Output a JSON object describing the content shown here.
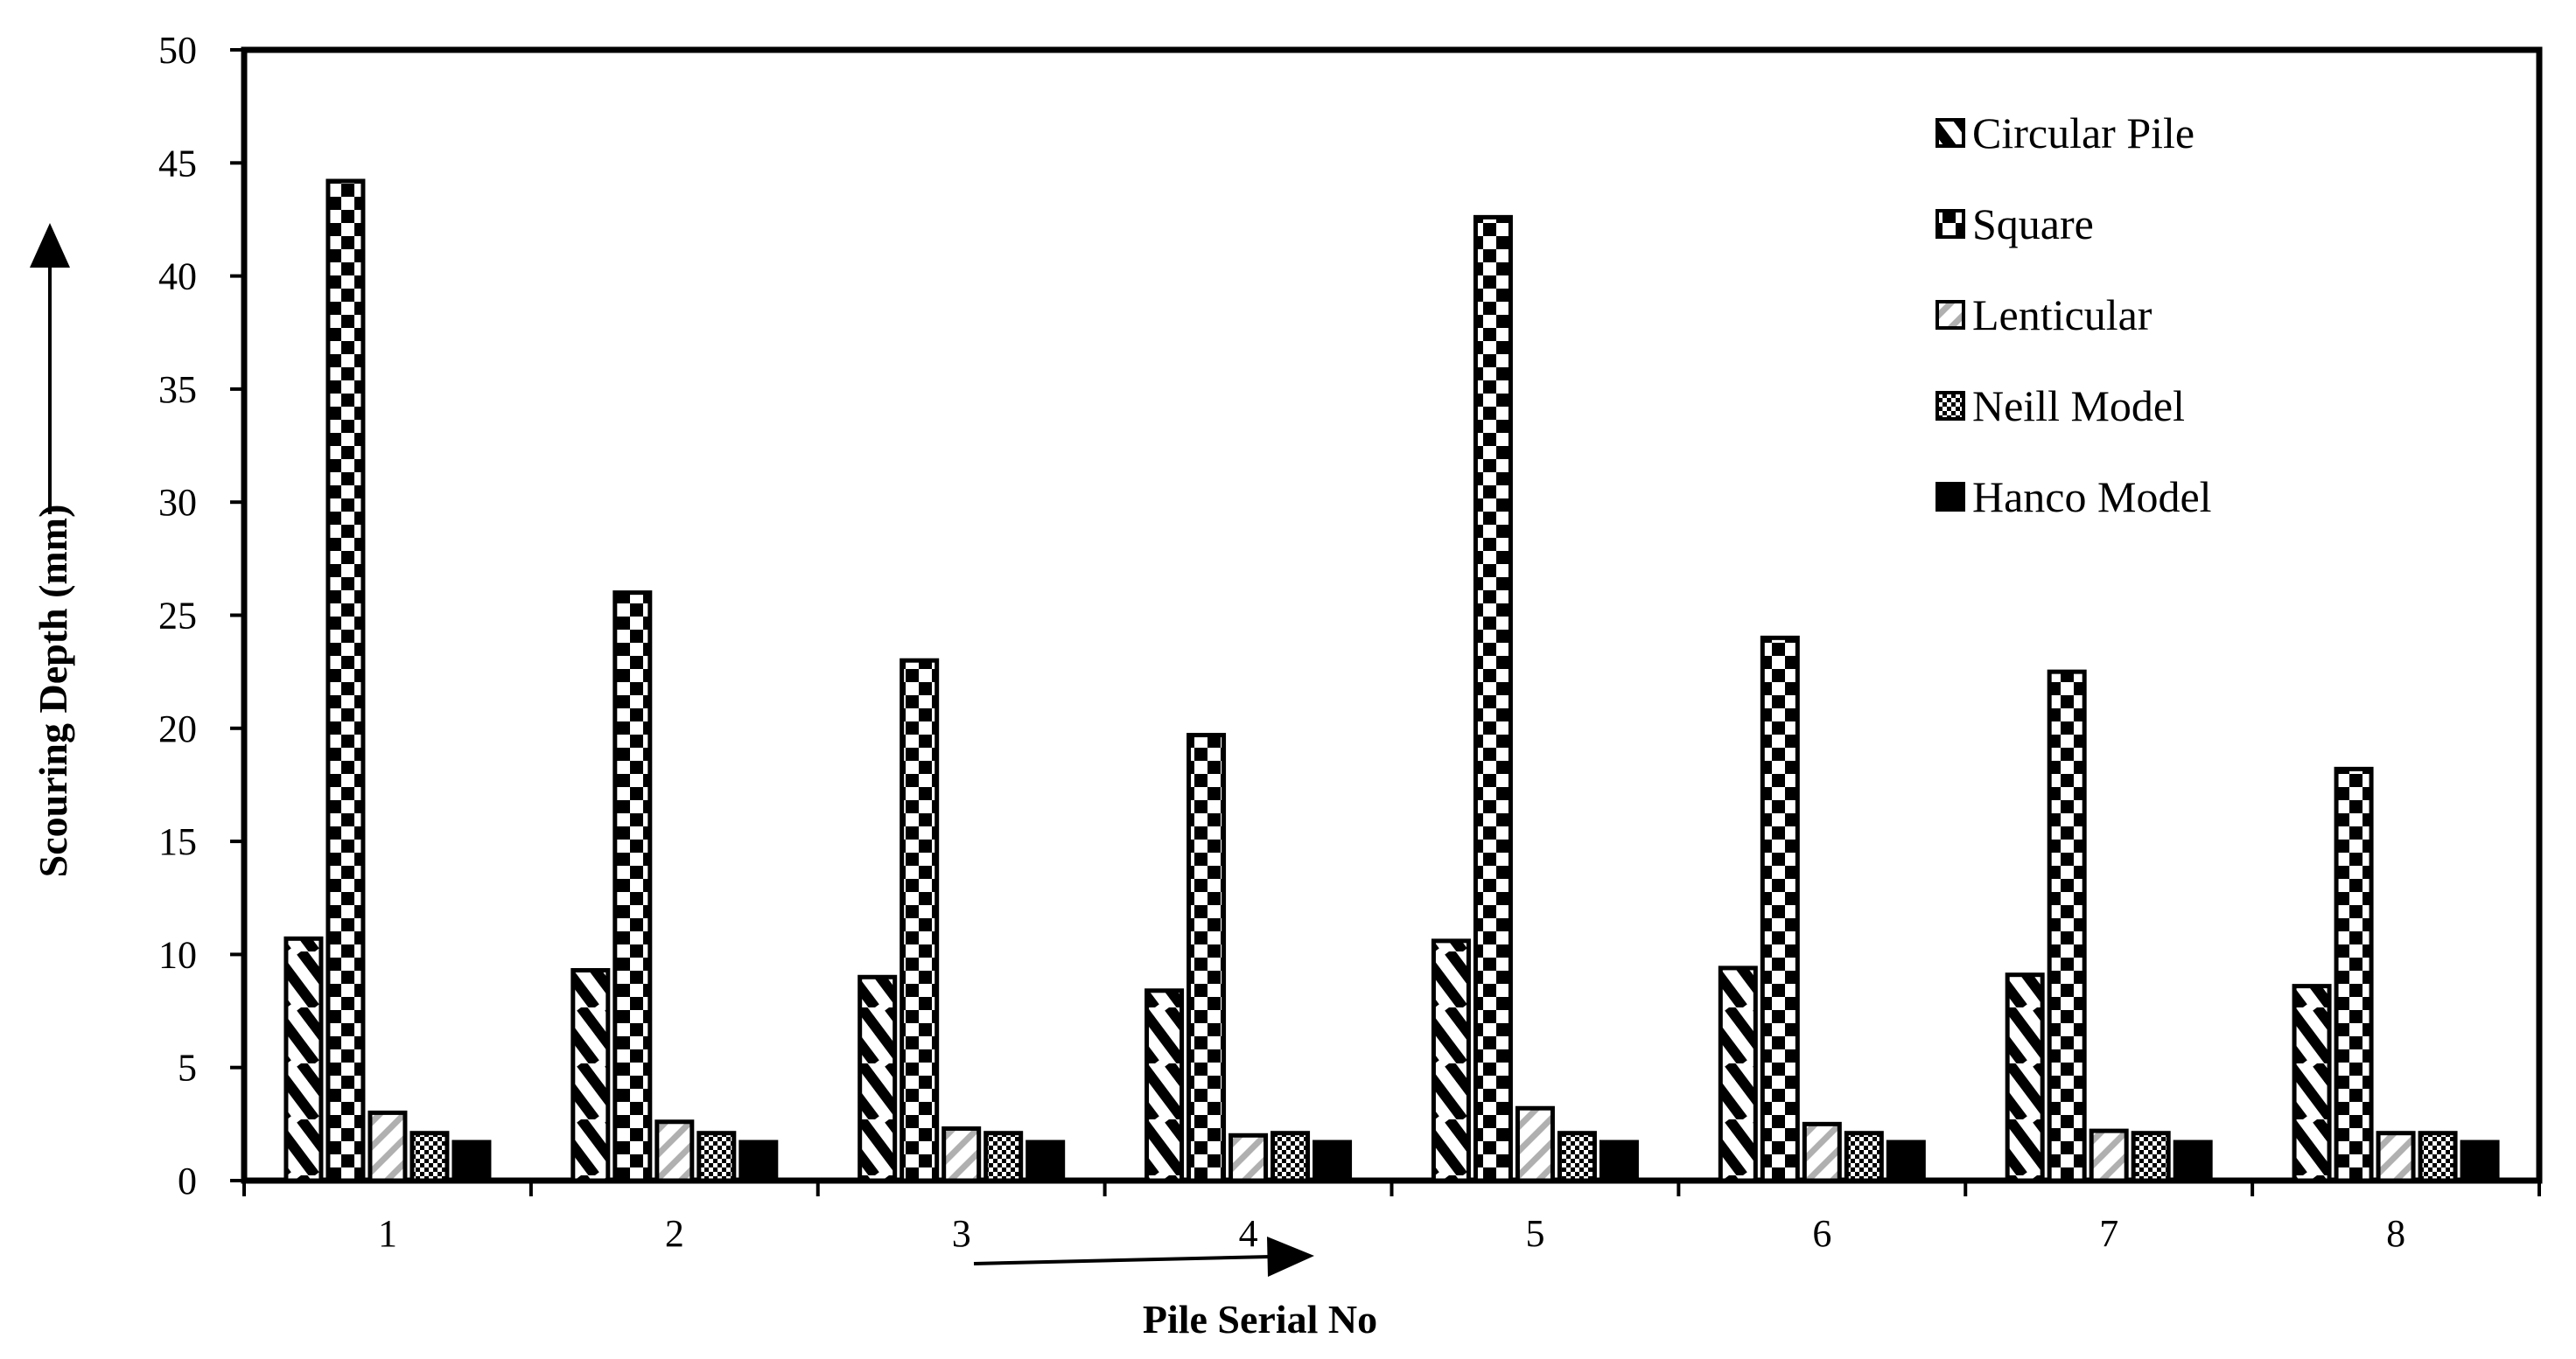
{
  "chart_data": {
    "type": "bar",
    "title": "",
    "xlabel": "Pile Serial No",
    "ylabel": "Scouring Depth (mm)",
    "ylim": [
      0,
      50
    ],
    "yticks": [
      "0",
      "5",
      "10",
      "15",
      "20",
      "25",
      "30",
      "35",
      "40",
      "45",
      "50"
    ],
    "categories": [
      "1",
      "2",
      "3",
      "4",
      "5",
      "6",
      "7",
      "8"
    ],
    "grid": false,
    "legend_position": "top-right",
    "series": [
      {
        "name": "Circular Pile",
        "pattern": "diagonal-stripes",
        "values": [
          10.7,
          9.3,
          9.0,
          8.4,
          10.6,
          9.4,
          9.1,
          8.6
        ]
      },
      {
        "name": "Square",
        "pattern": "checkerboard",
        "values": [
          44.2,
          26.0,
          23.0,
          19.7,
          42.6,
          24.0,
          22.5,
          18.2
        ]
      },
      {
        "name": "Lenticular",
        "pattern": "light-gray-hatch",
        "values": [
          3.0,
          2.6,
          2.3,
          2.0,
          3.2,
          2.5,
          2.2,
          2.1
        ]
      },
      {
        "name": "Neill Model",
        "pattern": "dense-checker",
        "values": [
          2.1,
          2.1,
          2.1,
          2.1,
          2.1,
          2.1,
          2.1,
          2.1
        ]
      },
      {
        "name": "Hanco Model",
        "pattern": "horizontal-bar",
        "values": [
          1.7,
          1.7,
          1.7,
          1.7,
          1.7,
          1.7,
          1.7,
          1.7
        ]
      }
    ]
  }
}
